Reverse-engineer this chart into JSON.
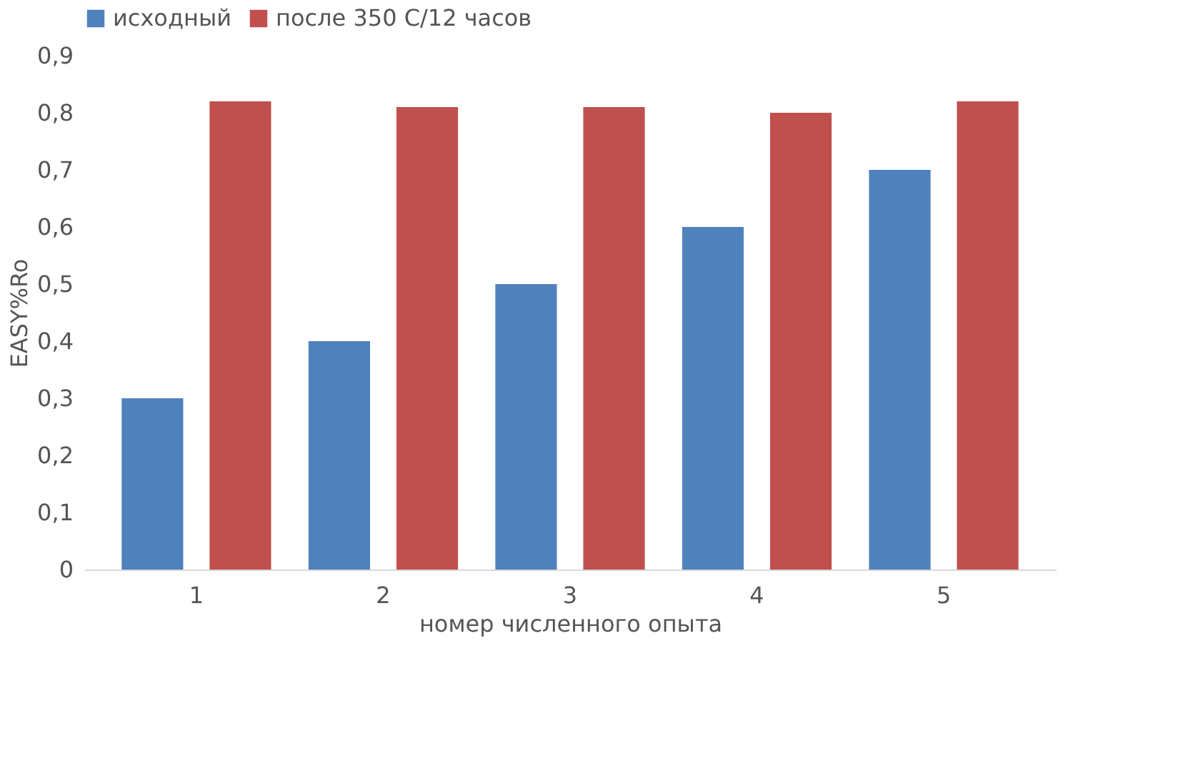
{
  "chart_data": {
    "type": "bar",
    "xlabel": "номер численного опыта",
    "ylabel": "EASY%Ro",
    "categories": [
      "1",
      "2",
      "3",
      "4",
      "5"
    ],
    "series": [
      {
        "name": "исходный",
        "color": "#4f81bd",
        "values": [
          0.3,
          0.4,
          0.5,
          0.6,
          0.7
        ]
      },
      {
        "name": "после 350 С/12 часов",
        "color": "#c0504d",
        "values": [
          0.82,
          0.81,
          0.81,
          0.8,
          0.82
        ]
      }
    ],
    "ylim": [
      0,
      0.9
    ],
    "yticks": [
      {
        "value": 0,
        "label": "0"
      },
      {
        "value": 0.1,
        "label": "0,1"
      },
      {
        "value": 0.2,
        "label": "0,2"
      },
      {
        "value": 0.3,
        "label": "0,3"
      },
      {
        "value": 0.4,
        "label": "0,4"
      },
      {
        "value": 0.5,
        "label": "0,5"
      },
      {
        "value": 0.6,
        "label": "0,6"
      },
      {
        "value": 0.7,
        "label": "0,7"
      },
      {
        "value": 0.8,
        "label": "0,8"
      },
      {
        "value": 0.9,
        "label": "0,9"
      }
    ],
    "grid": false,
    "legend": "top"
  }
}
